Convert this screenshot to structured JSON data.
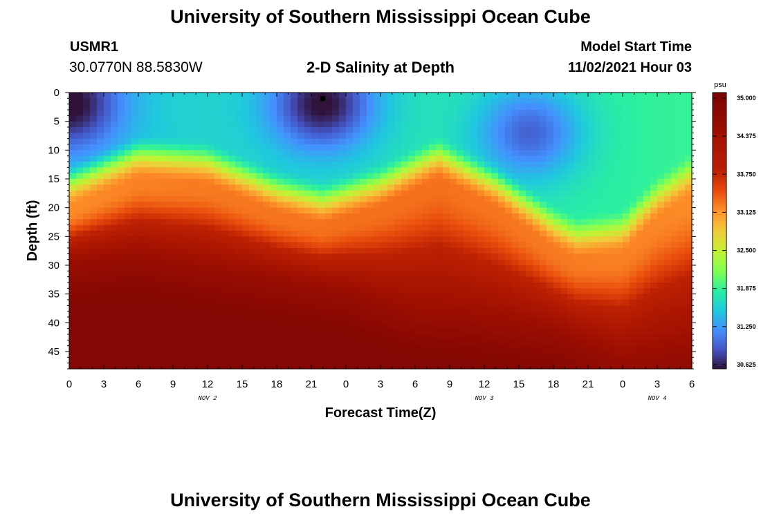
{
  "header": {
    "title": "University of Southern Mississippi Ocean Cube",
    "station_id": "USMR1",
    "coordinates": "30.0770N  88.5830W",
    "plot_name": "2-D Salinity at Depth",
    "model_label": "Model Start Time",
    "model_time": "11/02/2021 Hour 03"
  },
  "footer": {
    "title": "University of Southern Mississippi Ocean Cube"
  },
  "chart_data": {
    "type": "heatmap",
    "title": "2-D Salinity at Depth",
    "xlabel": "Forecast Time(Z)",
    "ylabel": "Depth (ft)",
    "x_ticks": [
      "0",
      "3",
      "6",
      "9",
      "12",
      "15",
      "18",
      "21",
      "0",
      "3",
      "6",
      "9",
      "12",
      "15",
      "18",
      "21",
      "0",
      "3",
      "6"
    ],
    "x_range_hours": [
      0,
      54
    ],
    "day_labels": [
      {
        "label": "NOV 2",
        "hour": 12
      },
      {
        "label": "NOV 3",
        "hour": 36
      },
      {
        "label": "NOV 4",
        "hour": 51
      }
    ],
    "y_ticks": [
      "0",
      "5",
      "10",
      "15",
      "20",
      "25",
      "30",
      "35",
      "40",
      "45"
    ],
    "y_range_ft": [
      0,
      48
    ],
    "colorbar": {
      "unit": "psu",
      "min": 30.625,
      "max": 35.0,
      "tick_labels": [
        "35.000",
        "34.375",
        "33.750",
        "33.125",
        "32.500",
        "31.875",
        "31.250",
        "30.625"
      ]
    },
    "halocline_depth_ft": {
      "hours": [
        0,
        6,
        12,
        18,
        22,
        27,
        32,
        37,
        42,
        44,
        48,
        51,
        54
      ],
      "depth": [
        18,
        13,
        14,
        19,
        21,
        18,
        13,
        18,
        25,
        27,
        26,
        20,
        16
      ]
    },
    "deep_water_depth_ft": {
      "hours": [
        0,
        6,
        12,
        18,
        24,
        30,
        36,
        42,
        48,
        54
      ],
      "depth": [
        25,
        24,
        26,
        28,
        30,
        34,
        35,
        37,
        42,
        40
      ]
    },
    "fresh_core_centers": [
      {
        "hour": 0,
        "depth_ft": 2,
        "salinity": 30.7
      },
      {
        "hour": 22,
        "depth_ft": 2,
        "salinity": 30.6
      },
      {
        "hour": 40,
        "depth_ft": 7,
        "salinity": 30.9
      }
    ],
    "marker": {
      "hour": 22,
      "depth_ft": 0.5
    }
  }
}
